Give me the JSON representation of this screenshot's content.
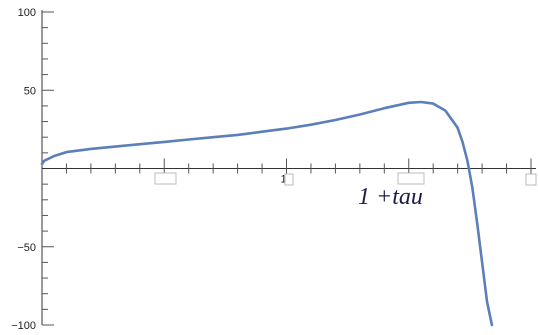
{
  "chart_data": {
    "type": "line",
    "title": "",
    "xlabel": "",
    "ylabel": "",
    "xlim": [
      0,
      2
    ],
    "ylim": [
      -100,
      100
    ],
    "grid": false,
    "x_tick_labels": [
      "",
      "1",
      "",
      "2"
    ],
    "y_tick_labels": [
      "100",
      "50",
      "-50",
      "-100"
    ],
    "y_tick_values": [
      100,
      50,
      -50,
      -100
    ],
    "annotation": "1 +tau",
    "series": [
      {
        "color": "#5b7fb8",
        "x": [
          0.0,
          0.01,
          0.05,
          0.1,
          0.2,
          0.3,
          0.4,
          0.5,
          0.6,
          0.7,
          0.8,
          0.9,
          1.0,
          1.1,
          1.2,
          1.3,
          1.4,
          1.5,
          1.55,
          1.6,
          1.65,
          1.7,
          1.72,
          1.74,
          1.76,
          1.78,
          1.8,
          1.82,
          1.84
        ],
        "y": [
          3,
          5,
          8,
          10.5,
          12.5,
          14,
          15.5,
          17,
          18.5,
          20,
          21.5,
          23.5,
          25.5,
          28,
          31,
          34.5,
          38.5,
          42,
          42.5,
          41.5,
          37,
          26,
          17,
          5,
          -12,
          -35,
          -60,
          -85,
          -100
        ]
      }
    ]
  }
}
